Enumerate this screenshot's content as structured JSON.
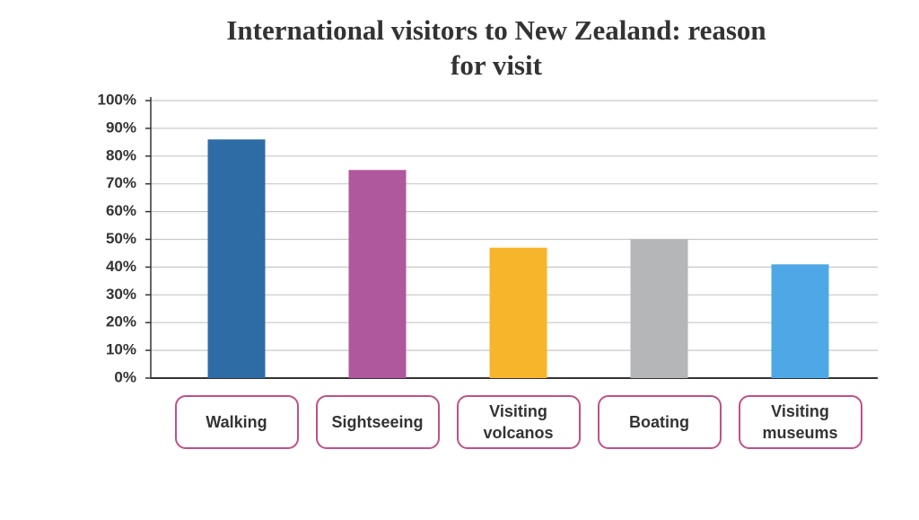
{
  "chart_data": {
    "type": "bar",
    "title": "International visitors to New Zealand: reason for visit",
    "categories": [
      "Walking",
      "Sightseeing",
      "Visiting volcanos",
      "Boating",
      "Visiting museums"
    ],
    "values": [
      86,
      75,
      47,
      50,
      41
    ],
    "colors": [
      "#2e6ca6",
      "#b0589e",
      "#f7b52c",
      "#b4b6b8",
      "#4ea8e6"
    ],
    "ylim": [
      0,
      100
    ],
    "yticks": [
      {
        "value": 0,
        "label": "0%"
      },
      {
        "value": 10,
        "label": "10%"
      },
      {
        "value": 20,
        "label": "20%"
      },
      {
        "value": 30,
        "label": "30%"
      },
      {
        "value": 40,
        "label": "40%"
      },
      {
        "value": 50,
        "label": "50%"
      },
      {
        "value": 60,
        "label": "60%"
      },
      {
        "value": 70,
        "label": "70%"
      },
      {
        "value": 80,
        "label": "80%"
      },
      {
        "value": 90,
        "label": "90%"
      },
      {
        "value": 100,
        "label": "100%"
      }
    ],
    "grid": true
  }
}
